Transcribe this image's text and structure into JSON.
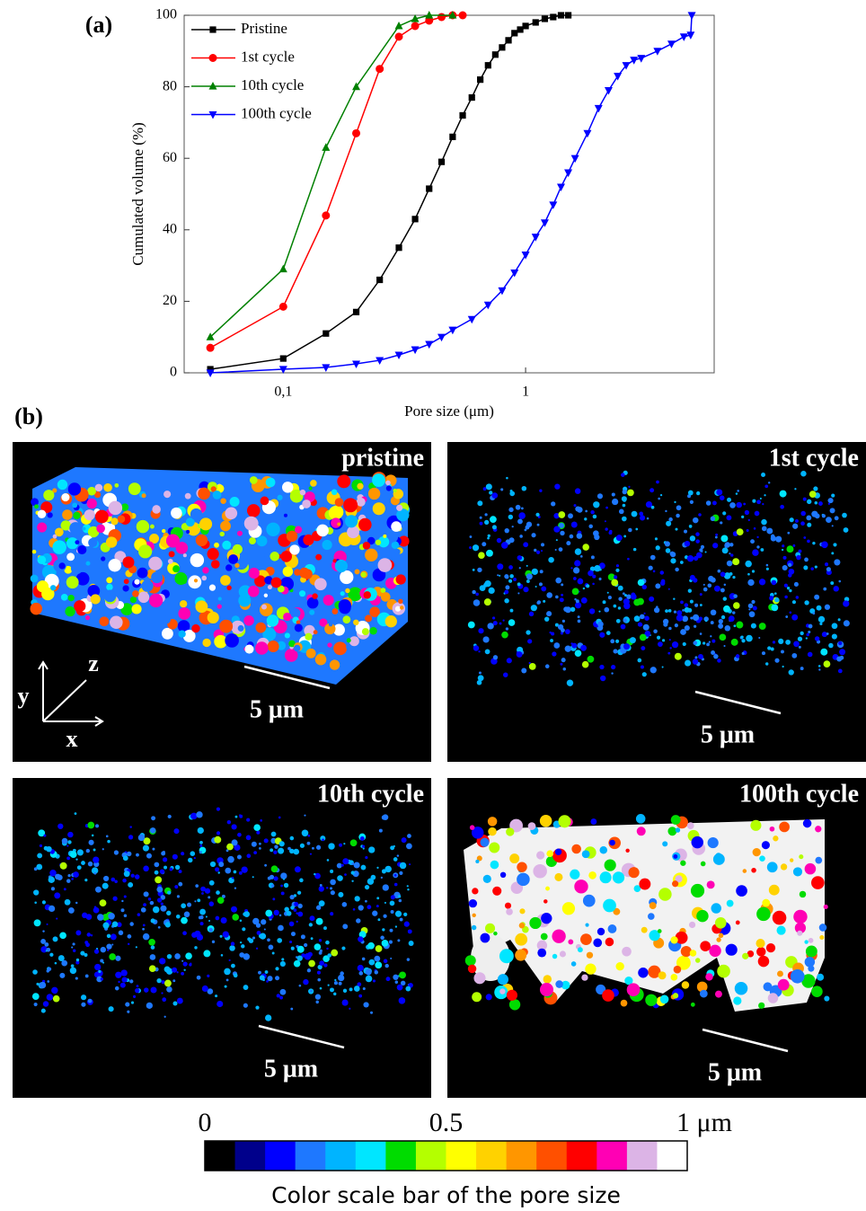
{
  "chart_data": {
    "type": "line",
    "panel_label": "(a)",
    "x_label": "Pore size (μm)",
    "y_label": "Cumulated volume (%)",
    "log_x": true,
    "xlim": [
      0.039,
      6.0
    ],
    "ylim": [
      0,
      100
    ],
    "xticks": [
      {
        "value": 0.1,
        "label": "0,1"
      },
      1
    ],
    "yticks": [
      0,
      20,
      40,
      60,
      80,
      100
    ],
    "legend": "upper left",
    "series": [
      {
        "name": "Pristine",
        "color": "#000000",
        "marker": "square",
        "x": [
          0.05,
          0.1,
          0.15,
          0.2,
          0.25,
          0.3,
          0.35,
          0.4,
          0.45,
          0.5,
          0.55,
          0.6,
          0.65,
          0.7,
          0.75,
          0.8,
          0.85,
          0.9,
          0.95,
          1.0,
          1.1,
          1.2,
          1.3,
          1.4,
          1.5
        ],
        "values": [
          1,
          4,
          11,
          17,
          26,
          35,
          43,
          51.5,
          59,
          66,
          72,
          77,
          82,
          86,
          89,
          91,
          93,
          95,
          96,
          97,
          98,
          99,
          99.5,
          100,
          100
        ]
      },
      {
        "name": "1st cycle",
        "color": "#ff0000",
        "marker": "circle",
        "x": [
          0.05,
          0.1,
          0.15,
          0.2,
          0.25,
          0.3,
          0.35,
          0.4,
          0.45,
          0.5,
          0.55
        ],
        "values": [
          7,
          18.5,
          44,
          67,
          85,
          94,
          97,
          98.5,
          99.5,
          100,
          100
        ]
      },
      {
        "name": "10th cycle",
        "color": "#008000",
        "marker": "triangle-up",
        "x": [
          0.05,
          0.1,
          0.15,
          0.2,
          0.3,
          0.35,
          0.4,
          0.5
        ],
        "values": [
          10,
          29,
          63,
          80,
          97,
          99,
          100,
          100
        ]
      },
      {
        "name": "100th cycle",
        "color": "#0000ff",
        "marker": "triangle-down",
        "x": [
          0.05,
          0.1,
          0.15,
          0.2,
          0.25,
          0.3,
          0.35,
          0.4,
          0.45,
          0.5,
          0.6,
          0.7,
          0.8,
          0.9,
          1.0,
          1.1,
          1.2,
          1.3,
          1.4,
          1.5,
          1.6,
          1.8,
          2.0,
          2.2,
          2.4,
          2.6,
          2.8,
          3.0,
          3.5,
          4.0,
          4.5,
          4.8,
          4.85
        ],
        "values": [
          0,
          1,
          1.5,
          2.5,
          3.5,
          5,
          6.5,
          8,
          10,
          12,
          15,
          19,
          23,
          28,
          33,
          38,
          42,
          47,
          52,
          56,
          60,
          67,
          74,
          79,
          83,
          86,
          87.5,
          88,
          90,
          92,
          94,
          94.5,
          100
        ]
      }
    ]
  },
  "micrographs": {
    "panel_label": "(b)",
    "panels": [
      {
        "label": "pristine",
        "scale_bar": "5 μm",
        "style": "dense"
      },
      {
        "label": "1st cycle",
        "scale_bar": "5 μm",
        "style": "sparse"
      },
      {
        "label": "10th cycle",
        "scale_bar": "5 μm",
        "style": "sparse"
      },
      {
        "label": "100th cycle",
        "scale_bar": "5 μm",
        "style": "solid"
      }
    ],
    "axes": [
      "x",
      "y",
      "z"
    ],
    "colorbar": {
      "range": [
        0,
        1
      ],
      "ticks": [
        0,
        0.5,
        {
          "value": 1,
          "label": "1 μm"
        }
      ],
      "colors": [
        "#000000",
        "#00008b",
        "#0000ff",
        "#1e78ff",
        "#00b4ff",
        "#00e6ff",
        "#00dc00",
        "#b4ff00",
        "#ffff00",
        "#ffd200",
        "#ff9600",
        "#ff5000",
        "#ff0000",
        "#ff00b4",
        "#dcb4e6",
        "#ffffff"
      ],
      "caption": "Color scale bar of the pore size"
    }
  }
}
